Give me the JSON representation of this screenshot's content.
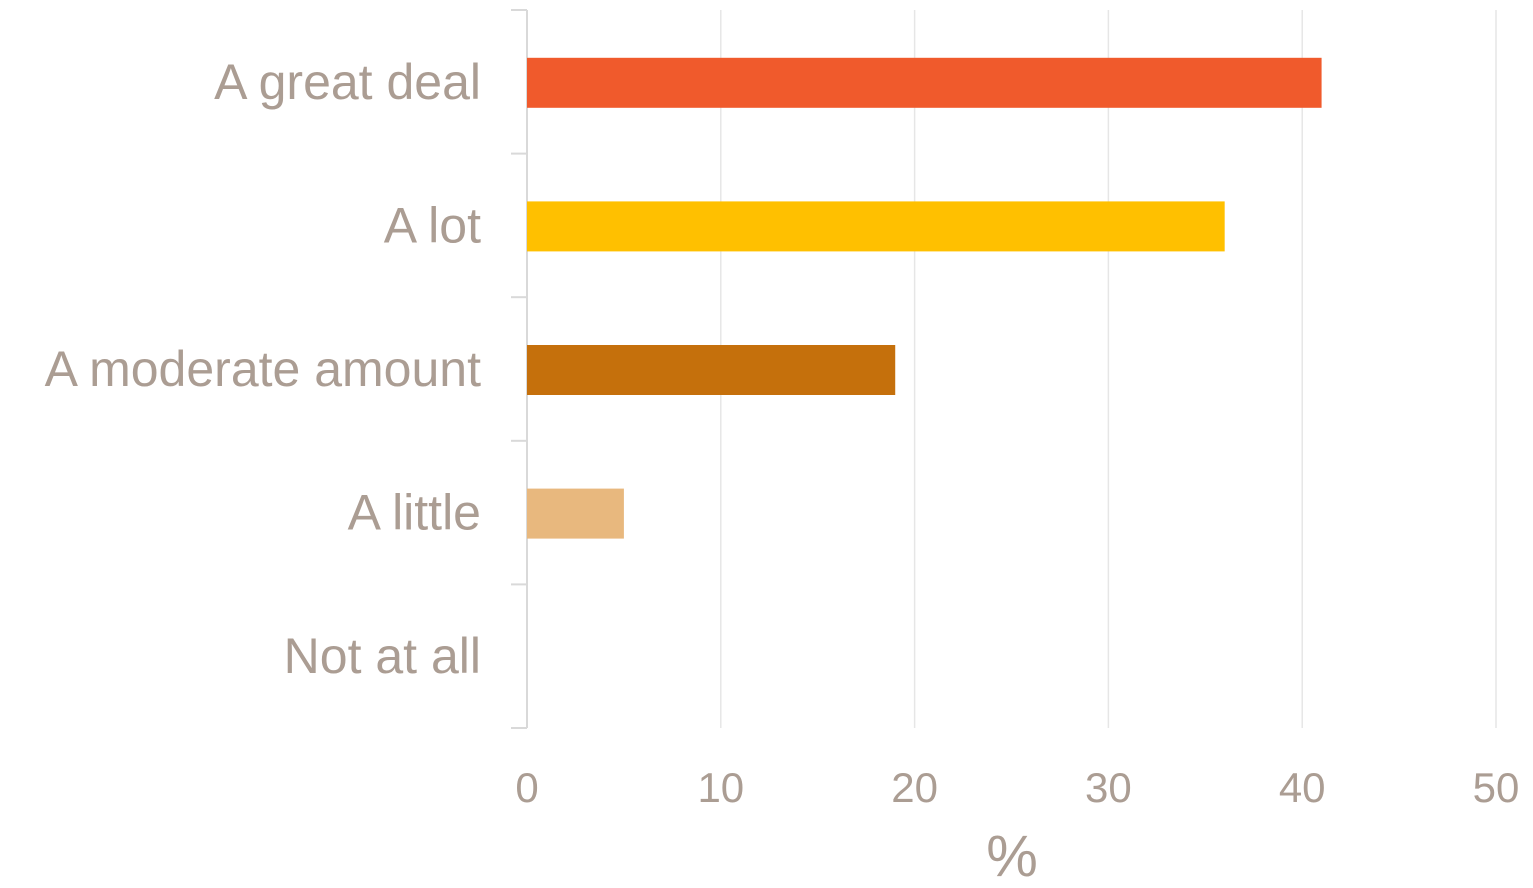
{
  "chart_data": {
    "type": "bar",
    "orientation": "horizontal",
    "categories": [
      "A great deal",
      "A lot",
      "A moderate amount",
      "A little",
      "Not at all"
    ],
    "values": [
      41,
      36,
      19,
      5,
      0
    ],
    "bar_colors": [
      "#f05a2c",
      "#ffc000",
      "#c5700c",
      "#e8b87e",
      "#cccccc"
    ],
    "xlabel": "%",
    "ylabel": "",
    "xlim": [
      0,
      50
    ],
    "xticks": [
      "0",
      "10",
      "20",
      "30",
      "40",
      "50"
    ],
    "grid": true,
    "legend": "none",
    "colors": {
      "label_text": "#ab9d93",
      "gridline": "#e6e6e6",
      "axis": "#d9d9d9"
    }
  }
}
